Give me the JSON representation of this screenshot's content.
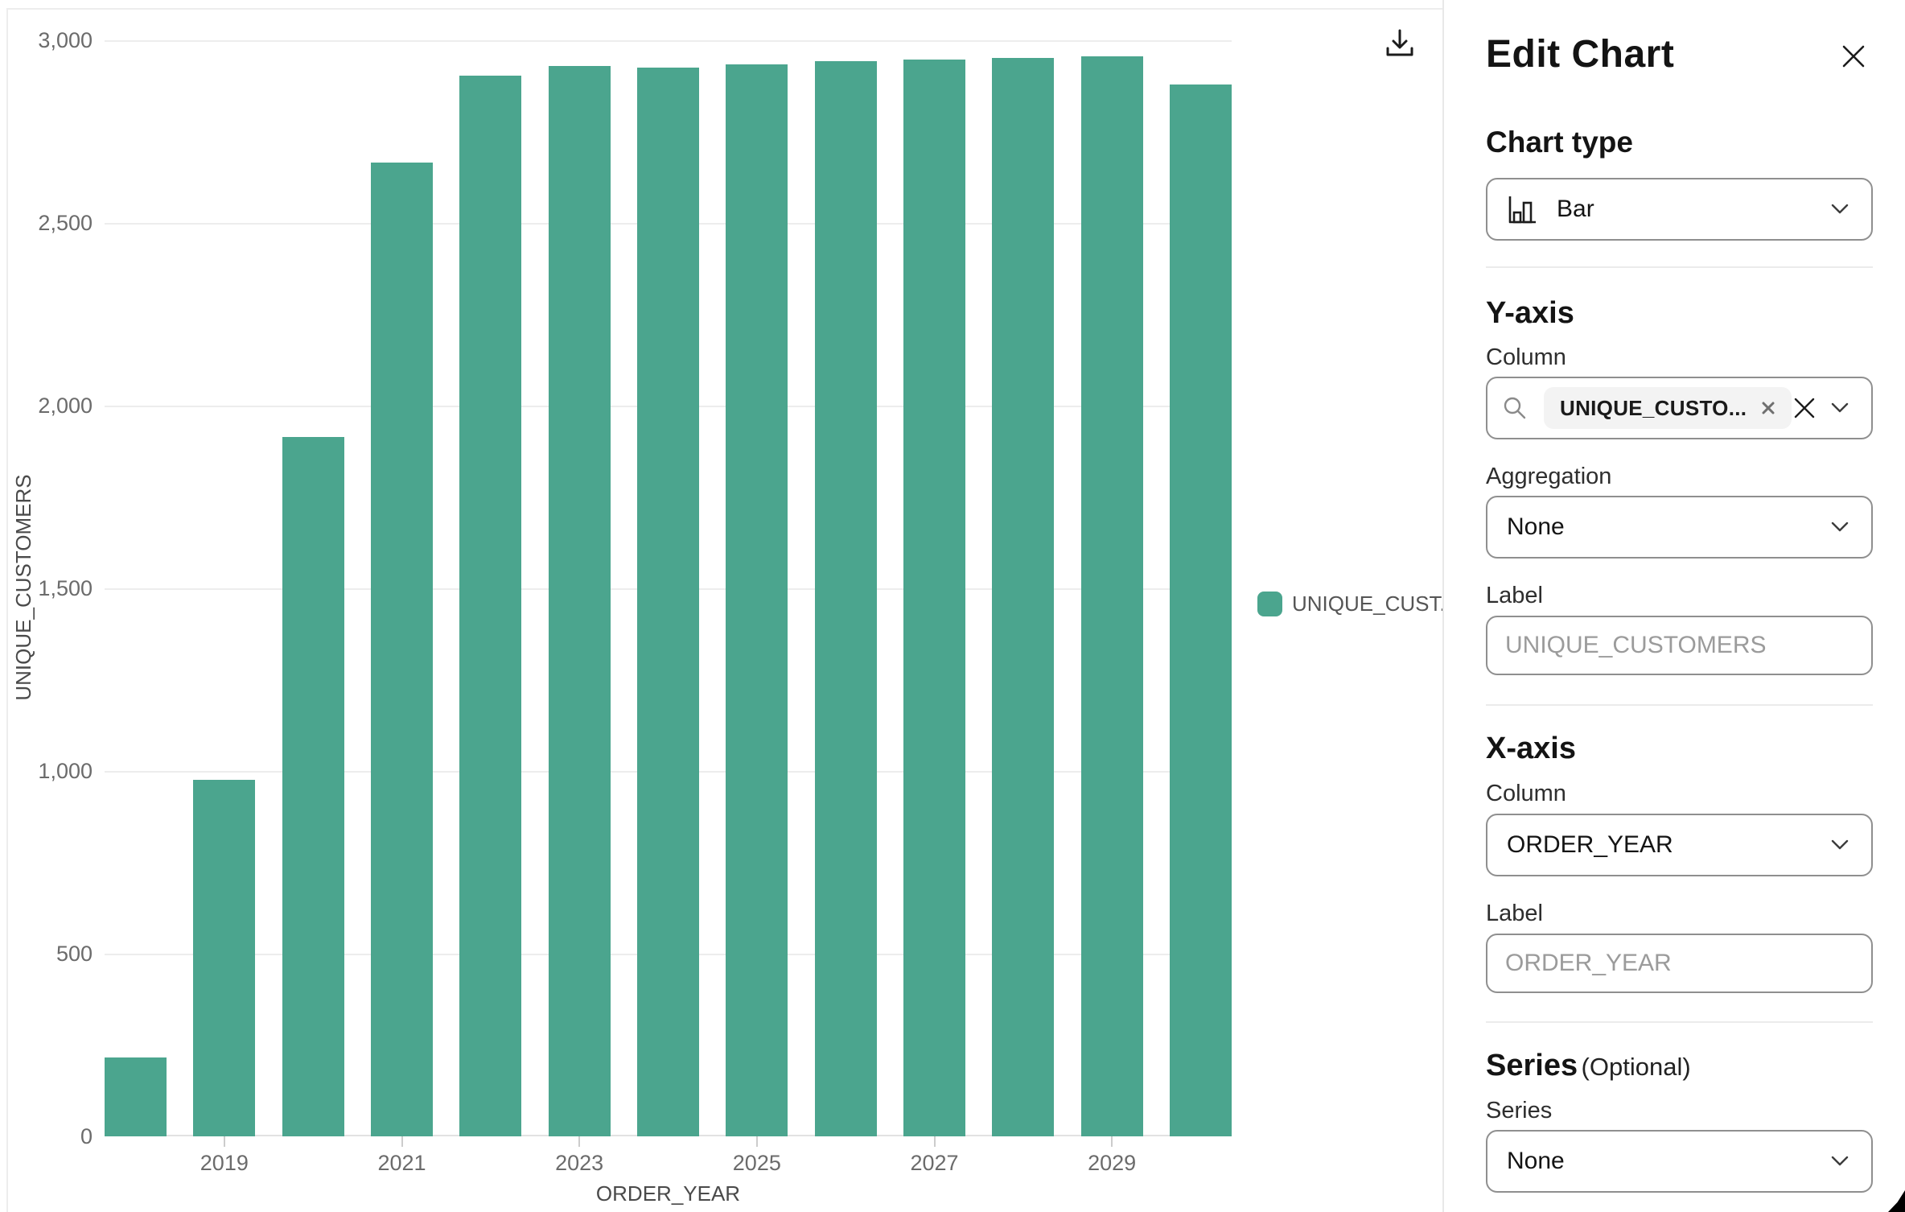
{
  "chart": {
    "y_axis_title": "UNIQUE_CUSTOMERS",
    "x_axis_title": "ORDER_YEAR",
    "legend_label": "UNIQUE_CUST...",
    "bar_color": "#4BA58E"
  },
  "chart_data": {
    "type": "bar",
    "title": "",
    "xlabel": "ORDER_YEAR",
    "ylabel": "UNIQUE_CUSTOMERS",
    "categories": [
      "2018",
      "2019",
      "2020",
      "2021",
      "2022",
      "2023",
      "2024",
      "2025",
      "2026",
      "2027",
      "2028",
      "2029",
      "2030"
    ],
    "values": [
      215,
      975,
      1915,
      2665,
      2903,
      2929,
      2925,
      2933,
      2942,
      2948,
      2951,
      2955,
      2878
    ],
    "series": [
      {
        "name": "UNIQUE_CUSTOMERS",
        "values": [
          215,
          975,
          1915,
          2665,
          2903,
          2929,
          2925,
          2933,
          2942,
          2948,
          2951,
          2955,
          2878
        ]
      }
    ],
    "ylim": [
      0,
      3000
    ],
    "y_ticks": [
      0,
      500,
      1000,
      1500,
      2000,
      2500,
      3000
    ],
    "y_tick_labels": [
      "0",
      "500",
      "1,000",
      "1,500",
      "2,000",
      "2,500",
      "3,000"
    ],
    "x_tick_labels": [
      "2019",
      "2021",
      "2023",
      "2025",
      "2027",
      "2029"
    ],
    "grid": true,
    "legend_position": "right",
    "legend_entries": [
      "UNIQUE_CUST..."
    ]
  },
  "panel": {
    "title": "Edit Chart",
    "chart_type": {
      "label": "Chart type",
      "value": "Bar"
    },
    "y_axis": {
      "heading": "Y-axis",
      "column_label": "Column",
      "column_chip": "UNIQUE_CUSTO...",
      "aggregation_label": "Aggregation",
      "aggregation_value": "None",
      "label_label": "Label",
      "label_placeholder": "UNIQUE_CUSTOMERS",
      "label_value": ""
    },
    "x_axis": {
      "heading": "X-axis",
      "column_label": "Column",
      "column_value": "ORDER_YEAR",
      "label_label": "Label",
      "label_placeholder": "ORDER_YEAR",
      "label_value": ""
    },
    "series": {
      "heading": "Series",
      "optional_tag": "(Optional)",
      "series_label": "Series",
      "series_value": "None"
    }
  }
}
